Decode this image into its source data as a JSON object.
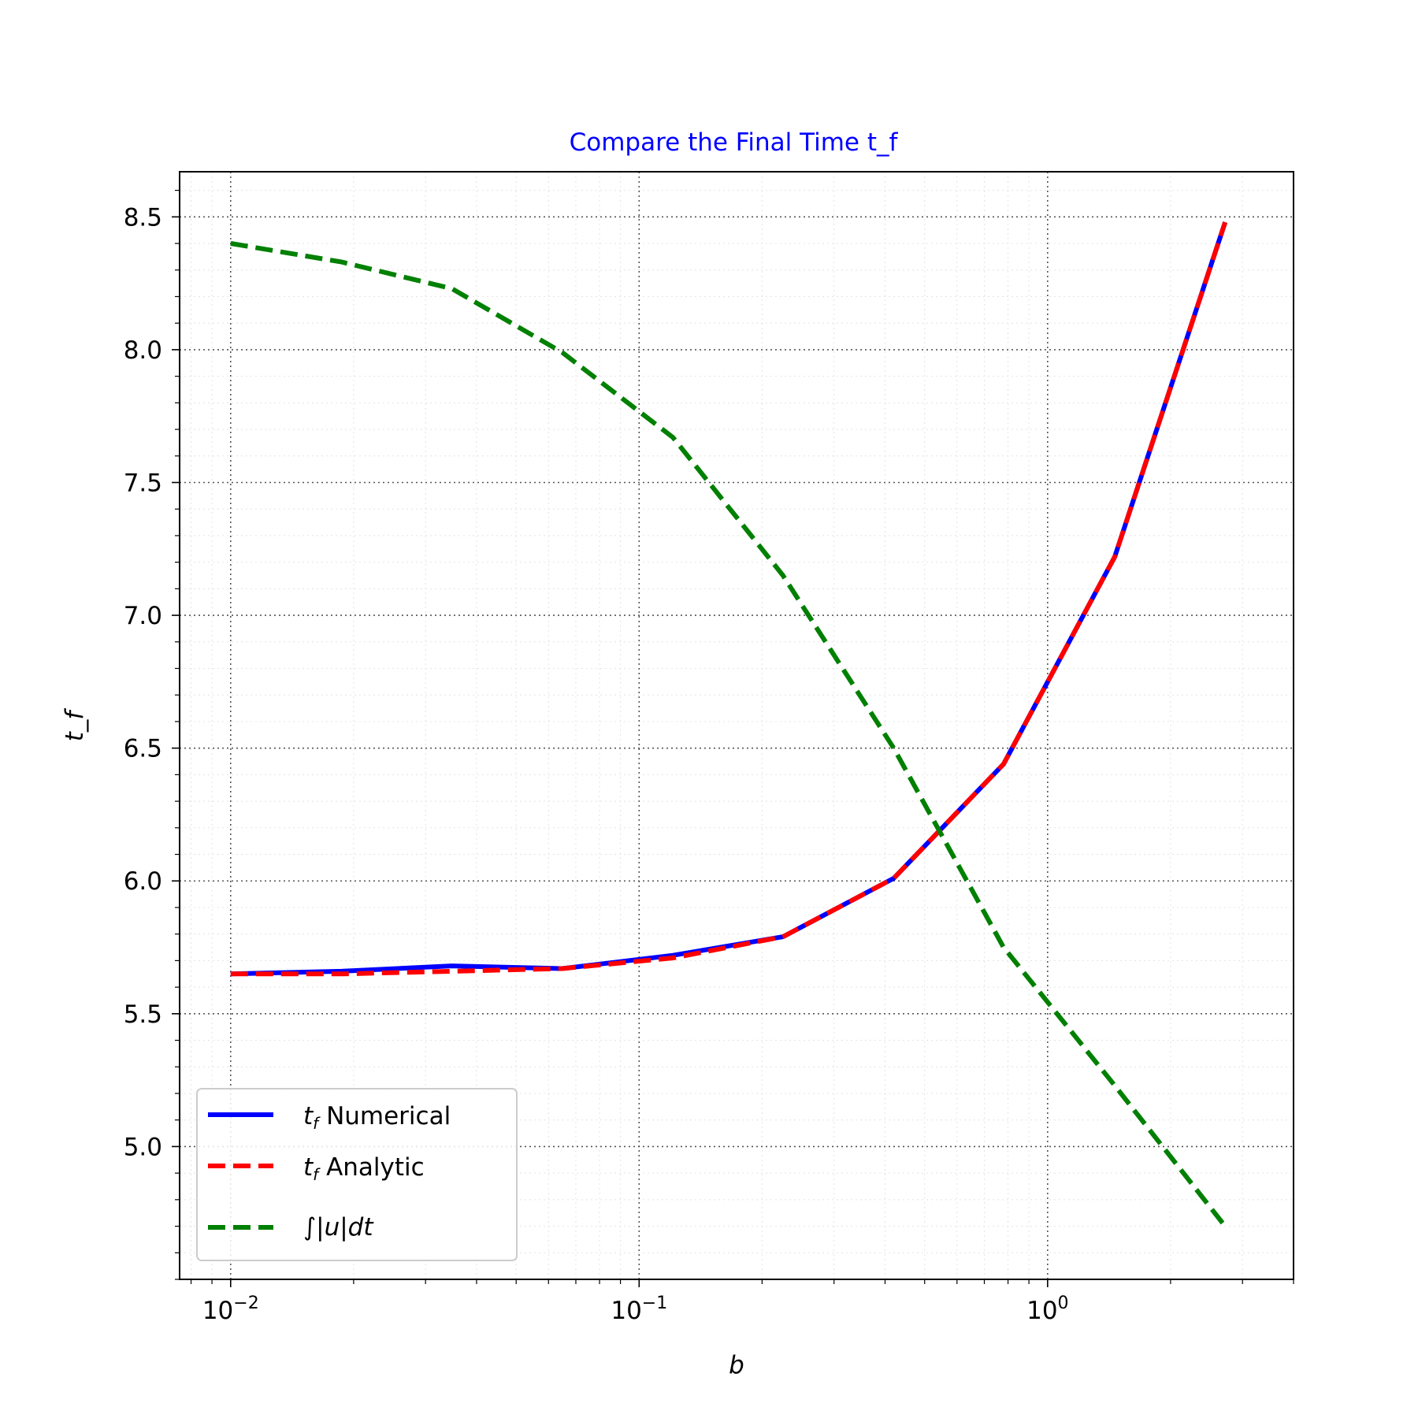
{
  "chart_data": {
    "type": "line",
    "title": "Compare the Final Time t_f",
    "xlabel": "b",
    "ylabel": "t_f",
    "xscale": "log",
    "xlim": [
      0.0075,
      4.0
    ],
    "ylim": [
      4.5,
      8.67
    ],
    "grid": true,
    "legend_position": "lower-left",
    "x_tick_labels": [
      "10^-2",
      "10^-1",
      "10^0"
    ],
    "y_tick_labels": [
      "5.0",
      "5.5",
      "6.0",
      "6.5",
      "7.0",
      "7.5",
      "8.0",
      "8.5"
    ],
    "colors": {
      "numerical": "#0000ff",
      "analytic": "#ff0000",
      "integral": "#008000",
      "title": "#0000ff"
    },
    "series": [
      {
        "name": "t_f Numerical",
        "legend_label": "Numerical",
        "style": "solid",
        "x": [
          0.01,
          0.0187,
          0.0348,
          0.0648,
          0.121,
          0.225,
          0.42,
          0.78,
          1.46,
          2.72
        ],
        "y": [
          5.65,
          5.66,
          5.68,
          5.67,
          5.72,
          5.79,
          6.01,
          6.44,
          7.22,
          8.48
        ]
      },
      {
        "name": "t_f Analytic",
        "legend_label": "Analytic",
        "style": "dashed",
        "x": [
          0.01,
          0.0187,
          0.0348,
          0.0648,
          0.121,
          0.225,
          0.42,
          0.78,
          1.46,
          2.72
        ],
        "y": [
          5.65,
          5.65,
          5.66,
          5.67,
          5.71,
          5.79,
          6.01,
          6.44,
          7.22,
          8.48
        ]
      },
      {
        "name": "∫|u|dt",
        "legend_label": "∫|u|dt",
        "style": "dashed",
        "x": [
          0.01,
          0.0187,
          0.0348,
          0.0648,
          0.121,
          0.225,
          0.42,
          0.78,
          1.46,
          2.72
        ],
        "y": [
          8.4,
          8.33,
          8.23,
          7.99,
          7.67,
          7.15,
          6.5,
          5.75,
          5.23,
          4.7
        ]
      }
    ]
  }
}
